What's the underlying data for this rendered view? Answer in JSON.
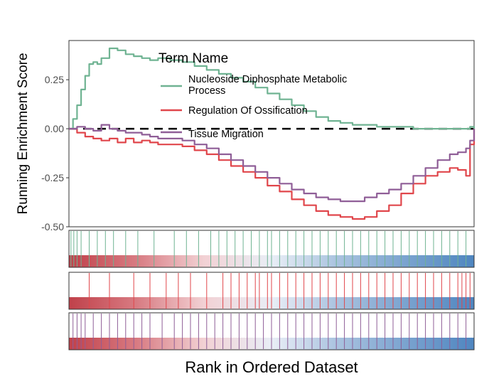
{
  "chart_data": {
    "type": "line",
    "xlabel": "Rank in Ordered Dataset",
    "ylabel": "Running Enrichment Score",
    "ylim": [
      -0.5,
      0.45
    ],
    "yticks": [
      0.25,
      0.0,
      -0.25,
      -0.5
    ],
    "ytick_labels": [
      "0.25",
      "0.00",
      "-0.25",
      "-0.50"
    ],
    "x_range": [
      0,
      1
    ],
    "reference_line": 0.0,
    "legend": {
      "title": "Term Name",
      "placement": "top-center",
      "entries": [
        [
          "Nucleoside Diphosphate Metabolic",
          "Process"
        ],
        [
          "Regulation Of Ossification"
        ],
        [
          "Tissue Migration"
        ]
      ]
    },
    "series": [
      {
        "name": "Nucleoside Diphosphate Metabolic Process",
        "color": "#6fb392",
        "x": [
          0,
          0.01,
          0.02,
          0.03,
          0.04,
          0.05,
          0.06,
          0.07,
          0.08,
          0.1,
          0.12,
          0.14,
          0.16,
          0.18,
          0.2,
          0.22,
          0.25,
          0.28,
          0.31,
          0.34,
          0.37,
          0.4,
          0.43,
          0.46,
          0.49,
          0.52,
          0.55,
          0.58,
          0.61,
          0.64,
          0.67,
          0.7,
          0.73,
          0.76,
          0.79,
          0.82,
          0.85,
          0.88,
          0.91,
          0.94,
          0.97,
          0.99,
          1.0
        ],
        "values": [
          0.0,
          0.05,
          0.12,
          0.2,
          0.27,
          0.33,
          0.34,
          0.33,
          0.36,
          0.41,
          0.4,
          0.38,
          0.37,
          0.36,
          0.35,
          0.36,
          0.35,
          0.34,
          0.32,
          0.3,
          0.28,
          0.26,
          0.24,
          0.21,
          0.18,
          0.15,
          0.12,
          0.09,
          0.06,
          0.04,
          0.03,
          0.02,
          0.02,
          0.01,
          0.01,
          0.01,
          0.0,
          0.0,
          0.0,
          0.0,
          0.0,
          0.01,
          0.0
        ]
      },
      {
        "name": "Regulation Of Ossification",
        "color": "#e0464b",
        "x": [
          0,
          0.02,
          0.04,
          0.06,
          0.08,
          0.1,
          0.12,
          0.14,
          0.16,
          0.18,
          0.2,
          0.22,
          0.25,
          0.28,
          0.31,
          0.34,
          0.37,
          0.4,
          0.43,
          0.46,
          0.49,
          0.52,
          0.55,
          0.58,
          0.61,
          0.64,
          0.67,
          0.7,
          0.73,
          0.76,
          0.79,
          0.82,
          0.85,
          0.88,
          0.91,
          0.94,
          0.96,
          0.98,
          0.99,
          1.0
        ],
        "values": [
          0.0,
          -0.02,
          -0.04,
          -0.05,
          -0.06,
          -0.05,
          -0.07,
          -0.05,
          -0.07,
          -0.06,
          -0.07,
          -0.08,
          -0.08,
          -0.09,
          -0.11,
          -0.13,
          -0.16,
          -0.19,
          -0.22,
          -0.25,
          -0.29,
          -0.32,
          -0.36,
          -0.39,
          -0.42,
          -0.44,
          -0.45,
          -0.46,
          -0.45,
          -0.42,
          -0.39,
          -0.33,
          -0.28,
          -0.24,
          -0.22,
          -0.2,
          -0.21,
          -0.24,
          -0.08,
          0.0
        ]
      },
      {
        "name": "Tissue Migration",
        "color": "#8f5e97",
        "x": [
          0,
          0.02,
          0.04,
          0.06,
          0.08,
          0.1,
          0.12,
          0.14,
          0.16,
          0.18,
          0.2,
          0.22,
          0.25,
          0.28,
          0.31,
          0.34,
          0.37,
          0.4,
          0.43,
          0.46,
          0.49,
          0.52,
          0.55,
          0.58,
          0.61,
          0.64,
          0.67,
          0.7,
          0.73,
          0.76,
          0.79,
          0.82,
          0.85,
          0.88,
          0.91,
          0.94,
          0.96,
          0.98,
          0.99,
          1.0
        ],
        "values": [
          0.0,
          0.01,
          0.0,
          -0.01,
          0.02,
          0.0,
          -0.01,
          -0.02,
          -0.02,
          -0.03,
          -0.04,
          -0.05,
          -0.05,
          -0.06,
          -0.08,
          -0.1,
          -0.13,
          -0.16,
          -0.19,
          -0.22,
          -0.25,
          -0.28,
          -0.31,
          -0.33,
          -0.35,
          -0.36,
          -0.37,
          -0.37,
          -0.35,
          -0.33,
          -0.31,
          -0.28,
          -0.24,
          -0.2,
          -0.16,
          -0.13,
          -0.12,
          -0.1,
          -0.06,
          0.0
        ]
      }
    ],
    "rug_panels": [
      {
        "series": "Nucleoside Diphosphate Metabolic Process",
        "color": "#6fb392",
        "hits": [
          0.005,
          0.012,
          0.02,
          0.03,
          0.05,
          0.07,
          0.09,
          0.11,
          0.14,
          0.17,
          0.21,
          0.26,
          0.29,
          0.32,
          0.35,
          0.37,
          0.39,
          0.41,
          0.43,
          0.45,
          0.47,
          0.49,
          0.5,
          0.52,
          0.54,
          0.56,
          0.58,
          0.6,
          0.62,
          0.64,
          0.66,
          0.68,
          0.7,
          0.72,
          0.74,
          0.76,
          0.78,
          0.8,
          0.82,
          0.84,
          0.86,
          0.88,
          0.9,
          0.92,
          0.94,
          0.96,
          0.98
        ]
      },
      {
        "series": "Regulation Of Ossification",
        "color": "#e0464b",
        "hits": [
          0.05,
          0.1,
          0.16,
          0.2,
          0.24,
          0.27,
          0.3,
          0.34,
          0.38,
          0.4,
          0.42,
          0.44,
          0.46,
          0.47,
          0.49,
          0.5,
          0.52,
          0.54,
          0.56,
          0.58,
          0.6,
          0.62,
          0.64,
          0.66,
          0.68,
          0.7,
          0.72,
          0.74,
          0.76,
          0.78,
          0.8,
          0.82,
          0.84,
          0.86,
          0.88,
          0.9,
          0.92,
          0.94,
          0.96,
          0.97,
          0.98,
          0.99
        ]
      },
      {
        "series": "Tissue Migration",
        "color": "#8f5e97",
        "hits": [
          0.01,
          0.02,
          0.03,
          0.04,
          0.06,
          0.08,
          0.1,
          0.12,
          0.14,
          0.16,
          0.18,
          0.2,
          0.23,
          0.26,
          0.28,
          0.3,
          0.32,
          0.34,
          0.36,
          0.38,
          0.4,
          0.42,
          0.44,
          0.46,
          0.48,
          0.5,
          0.52,
          0.54,
          0.56,
          0.58,
          0.6,
          0.62,
          0.64,
          0.66,
          0.68,
          0.7,
          0.72,
          0.74,
          0.76,
          0.78,
          0.8,
          0.82,
          0.84,
          0.86,
          0.88,
          0.9,
          0.92,
          0.94,
          0.96,
          0.98
        ]
      }
    ],
    "rank_gradient": [
      "#c0414a",
      "#d87b82",
      "#f2d1d4",
      "#e9eef6",
      "#a8c2df",
      "#7aa3cf",
      "#4f86c0"
    ]
  }
}
